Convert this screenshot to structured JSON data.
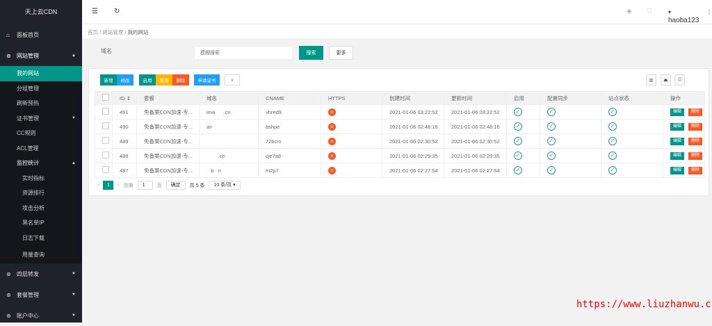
{
  "sidebar": {
    "title": "天上云CDN",
    "items": [
      {
        "label": "面板首页",
        "icon": "home-icon"
      },
      {
        "label": "网站管理",
        "icon": "cube-icon",
        "sub": [
          "我的网站",
          "分组管理",
          "刷新预热",
          "证书管理",
          "CC规则",
          "ACL管理",
          "监控统计"
        ],
        "monitor": [
          "实时指标",
          "资源排行",
          "攻击分析",
          "黑名单IP",
          "日志下载",
          "用量查询"
        ]
      },
      {
        "label": "四层转发",
        "icon": "cube-icon"
      },
      {
        "label": "套餐管理",
        "icon": "cube-icon"
      },
      {
        "label": "账户中心",
        "icon": "cube-icon"
      }
    ]
  },
  "header": {
    "user": "haoba123"
  },
  "breadcrumb": [
    "首页",
    "网站管理",
    "我的网站"
  ],
  "search": {
    "label": "域名",
    "placeholder": "模糊搜索",
    "search_btn": "搜索",
    "more_btn": "更多"
  },
  "toolbar": {
    "add": "新增",
    "edit": "修改",
    "enable": "启用",
    "disable": "禁用",
    "delete": "删除",
    "cert": "申请证书"
  },
  "table": {
    "headers": [
      "ID",
      "套餐",
      "域名",
      "CNAME",
      "HTTPS",
      "创建时间",
      "更新时间",
      "启用",
      "配置同步",
      "站点状态",
      "操作"
    ],
    "rows": [
      {
        "id": "491",
        "plan": "免备案CDN加速-专...",
        "domain": "ima      .cn",
        "cname": "vhred9",
        "created": "2021-01-06 03:22:52",
        "updated": "2021-01-06 03:22:52"
      },
      {
        "id": "490",
        "plan": "免备案CDN加速-专...",
        "domain": "av",
        "cname": "bshpe",
        "created": "2021-01-06 02:48:16",
        "updated": "2021-01-06 02:48:16"
      },
      {
        "id": "489",
        "plan": "免备案CDN加速-专...",
        "domain": "",
        "cname": "72bcm",
        "created": "2021-01-06 02:30:52",
        "updated": "2021-01-06 02:30:52"
      },
      {
        "id": "488",
        "plan": "免备案CDN加速-专...",
        "domain": "        .cn",
        "cname": "cje7a8",
        "created": "2021-01-06 02:29:35",
        "updated": "2021-01-06 02:29:35"
      },
      {
        "id": "487",
        "plan": "免备案CDN加速-专...",
        "domain": "   b   n",
        "cname": "m2p7",
        "created": "2021-01-06 02:27:54",
        "updated": "2021-01-06 02:27:54"
      }
    ],
    "edit_label": "编辑",
    "delete_label": "删除"
  },
  "pager": {
    "page": "1",
    "goto": "到第",
    "page_input": "1",
    "page_unit": "页",
    "confirm": "确定",
    "total": "共 5 条",
    "per_page": "10 条/页"
  },
  "watermark": "https://www.liuzhanwu.cn",
  "colors": {
    "primary": "#009688",
    "blue": "#1e9fff",
    "warn": "#ffb800",
    "danger": "#ff5722"
  }
}
